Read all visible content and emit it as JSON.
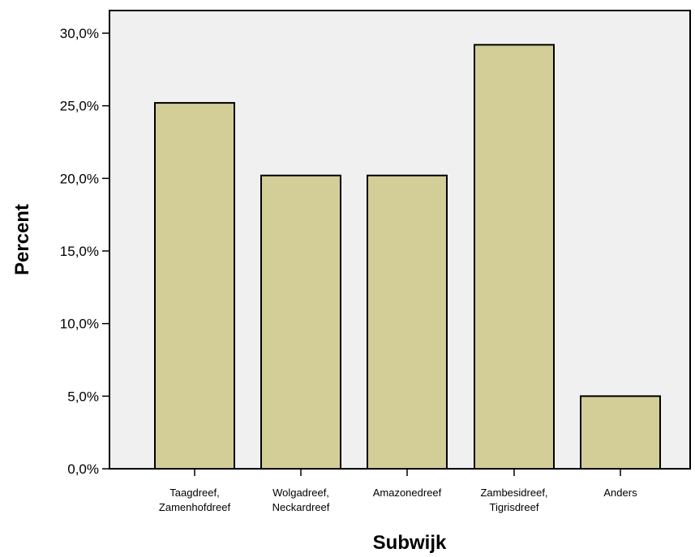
{
  "chart_data": {
    "type": "bar",
    "title": "",
    "xlabel": "Subwijk",
    "ylabel": "Percent",
    "ylim": [
      0,
      30
    ],
    "yticks": [
      0,
      5,
      10,
      15,
      20,
      25,
      30
    ],
    "ytick_labels": [
      "0,0%",
      "5,0%",
      "10,0%",
      "15,0%",
      "20,0%",
      "25,0%",
      "30,0%"
    ],
    "categories": [
      [
        "Taagdreef,",
        "Zamenhofdreef"
      ],
      [
        "Wolgadreef,",
        "Neckardreef"
      ],
      [
        "Amazonedreef"
      ],
      [
        "Zambesidreef,",
        "Tigrisdreef"
      ],
      [
        "Anders"
      ]
    ],
    "values": [
      25.2,
      20.2,
      20.2,
      29.2,
      5.0
    ],
    "grid": false,
    "colors": {
      "plot_background": "#f0f0f0",
      "bar_fill": "#d3ce98",
      "bar_stroke": "#000000"
    }
  }
}
